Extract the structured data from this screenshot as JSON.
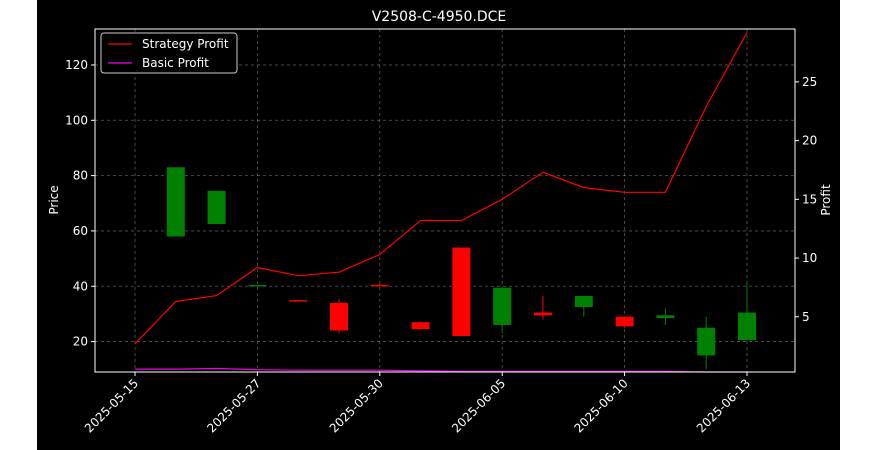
{
  "chart_data": {
    "type": "candlestick",
    "title": "V2508-C-4950.DCE",
    "xlabel": "",
    "ylabel": "Price",
    "ylabel_right": "Profit",
    "grid": true,
    "legend_placement": "top-left",
    "x_tick_labels": [
      "2025-05-15",
      "2025-05-27",
      "2025-05-30",
      "2025-06-05",
      "2025-06-10",
      "2025-06-13"
    ],
    "x_tick_indices": [
      0,
      3,
      6,
      9,
      12,
      15
    ],
    "left_axis": {
      "ylim": [
        9,
        133
      ],
      "ticks": [
        20,
        40,
        60,
        80,
        100,
        120
      ]
    },
    "right_axis": {
      "ylim": [
        0.3,
        29.5
      ],
      "ticks": [
        5,
        10,
        15,
        20,
        25
      ]
    },
    "candles": [
      {
        "i": 1,
        "open": 58,
        "close": 83,
        "high": 83,
        "low": 58,
        "direction": "up"
      },
      {
        "i": 2,
        "open": 62.5,
        "close": 74.5,
        "high": 74.5,
        "low": 62.5,
        "direction": "up"
      },
      {
        "i": 3,
        "open": 40,
        "close": 40.5,
        "high": 40.5,
        "low": 40,
        "direction": "up"
      },
      {
        "i": 4,
        "open": 35,
        "close": 35,
        "high": 35,
        "low": 35,
        "direction": "down"
      },
      {
        "i": 5,
        "open": 34,
        "close": 24,
        "high": 35.5,
        "low": 23,
        "direction": "down"
      },
      {
        "i": 6,
        "open": 40.5,
        "close": 40,
        "high": 41,
        "low": 40,
        "direction": "down"
      },
      {
        "i": 7,
        "open": 27,
        "close": 24.5,
        "high": 27,
        "low": 24.5,
        "direction": "down"
      },
      {
        "i": 8,
        "open": 54,
        "close": 22,
        "high": 54,
        "low": 22,
        "direction": "down"
      },
      {
        "i": 9,
        "open": 26,
        "close": 39.5,
        "high": 39.5,
        "low": 23,
        "direction": "up"
      },
      {
        "i": 10,
        "open": 30.5,
        "close": 29.5,
        "high": 36.5,
        "low": 28,
        "direction": "down"
      },
      {
        "i": 11,
        "open": 32.5,
        "close": 36.5,
        "high": 36.5,
        "low": 29,
        "direction": "up"
      },
      {
        "i": 12,
        "open": 29,
        "close": 25.5,
        "high": 29,
        "low": 25,
        "direction": "down"
      },
      {
        "i": 13,
        "open": 28.5,
        "close": 29.5,
        "high": 32,
        "low": 26,
        "direction": "up"
      },
      {
        "i": 14,
        "open": 15,
        "close": 25,
        "high": 29,
        "low": 10,
        "direction": "up"
      },
      {
        "i": 15,
        "open": 20.5,
        "close": 30.5,
        "high": 42,
        "low": 20.5,
        "direction": "up"
      }
    ],
    "series": [
      {
        "name": "Strategy Profit",
        "axis": "right",
        "color": "#ff0000",
        "x": [
          0,
          1,
          2,
          3,
          4,
          5,
          6,
          7,
          8,
          9,
          10,
          11,
          12,
          13,
          14,
          15
        ],
        "values": [
          2.7,
          6.3,
          6.8,
          9.2,
          8.5,
          8.8,
          10.3,
          13.2,
          13.2,
          15.0,
          17.3,
          16.0,
          15.6,
          15.6,
          22.9,
          29.2
        ]
      },
      {
        "name": "Basic Profit",
        "axis": "right",
        "color": "#ee00ee",
        "x": [
          0,
          1,
          2,
          3,
          4,
          5,
          6,
          7,
          8,
          9,
          10,
          11,
          12,
          13,
          14,
          15
        ],
        "values": [
          0.55,
          0.55,
          0.6,
          0.5,
          0.45,
          0.45,
          0.45,
          0.4,
          0.35,
          0.35,
          0.35,
          0.35,
          0.35,
          0.35,
          0.3,
          0.3
        ]
      }
    ]
  }
}
